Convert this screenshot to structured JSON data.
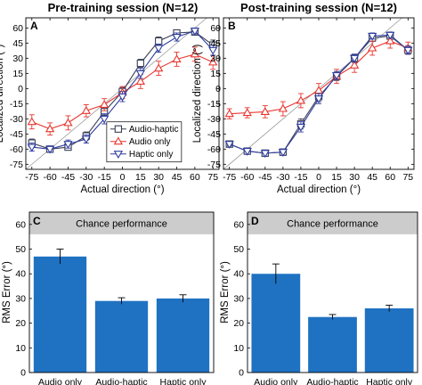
{
  "colors": {
    "audio_haptic": "#3a3f55",
    "audio_only": "#e8352e",
    "haptic_only": "#2f3d9e",
    "bar": "#1f72c2",
    "band": "#cccccc",
    "diagonal": "#9a9a9a"
  },
  "chart_data": [
    {
      "panel": "A",
      "type": "line",
      "title": "Pre-training session (N=12)",
      "xlabel": "Actual direction (°)",
      "ylabel": "Localized direction (°)",
      "xlim": [
        -80,
        80
      ],
      "ylim": [
        -80,
        70
      ],
      "x": [
        -75,
        -60,
        -45,
        -30,
        -15,
        0,
        15,
        30,
        45,
        60,
        75
      ],
      "x_tick_labels": [
        "-75",
        "-60",
        "-45",
        "-30",
        "-15",
        "0",
        "15",
        "30",
        "45",
        "60",
        "75"
      ],
      "y_tick_labels": [
        "-75",
        "-60",
        "-45",
        "-30",
        "-15",
        "0",
        "15",
        "30",
        "45",
        "60"
      ],
      "y_ticks": [
        -75,
        -60,
        -45,
        -30,
        -15,
        0,
        15,
        30,
        45,
        60
      ],
      "reference_line": "identity",
      "legend": {
        "placement": "bottom-right",
        "entries": [
          "Audio-haptic",
          "Audio only",
          "Haptic only"
        ]
      },
      "series": [
        {
          "name": "Audio-haptic",
          "marker": "square",
          "values": [
            -54,
            -60,
            -58,
            -47,
            -23,
            -3,
            25,
            47,
            55,
            56,
            43
          ],
          "errors": [
            4,
            3,
            3,
            4,
            4,
            4,
            4,
            4,
            3,
            3,
            5
          ]
        },
        {
          "name": "Audio only",
          "marker": "triangle-up",
          "values": [
            -33,
            -40,
            -34,
            -22,
            -16,
            -4,
            7,
            20,
            29,
            34,
            26
          ],
          "errors": [
            7,
            6,
            7,
            6,
            6,
            6,
            7,
            7,
            7,
            7,
            7
          ]
        },
        {
          "name": "Haptic only",
          "marker": "triangle-down",
          "values": [
            -58,
            -60,
            -55,
            -50,
            -30,
            -8,
            15,
            40,
            51,
            57,
            38
          ],
          "errors": [
            4,
            3,
            4,
            4,
            5,
            5,
            5,
            4,
            4,
            3,
            5
          ]
        }
      ]
    },
    {
      "panel": "B",
      "type": "line",
      "title": "Post-training session (N=12)",
      "xlabel": "Actual direction (°)",
      "ylabel": "Localized direction (°)",
      "xlim": [
        -80,
        80
      ],
      "ylim": [
        -80,
        70
      ],
      "x": [
        -75,
        -60,
        -45,
        -30,
        -15,
        0,
        15,
        30,
        45,
        60,
        75
      ],
      "x_tick_labels": [
        "-75",
        "-60",
        "-45",
        "-30",
        "-15",
        "0",
        "15",
        "30",
        "45",
        "60",
        "75"
      ],
      "y_tick_labels": [
        "-75",
        "-60",
        "-45",
        "-30",
        "-15",
        "0",
        "15",
        "30",
        "45",
        "60"
      ],
      "y_ticks": [
        -75,
        -60,
        -45,
        -30,
        -15,
        0,
        15,
        30,
        45,
        60
      ],
      "reference_line": "identity",
      "series": [
        {
          "name": "Audio-haptic",
          "marker": "square",
          "values": [
            -55,
            -62,
            -64,
            -63,
            -35,
            -8,
            12,
            30,
            50,
            52,
            38
          ],
          "errors": [
            2,
            3,
            3,
            3,
            5,
            5,
            4,
            4,
            3,
            3,
            4
          ]
        },
        {
          "name": "Audio only",
          "marker": "triangle-up",
          "values": [
            -25,
            -24,
            -23,
            -20,
            -12,
            -2,
            12,
            23,
            40,
            47,
            40
          ],
          "errors": [
            5,
            5,
            6,
            7,
            7,
            7,
            7,
            7,
            7,
            7,
            6
          ]
        },
        {
          "name": "Haptic only",
          "marker": "triangle-down",
          "values": [
            -55,
            -62,
            -64,
            -63,
            -38,
            -10,
            13,
            30,
            52,
            53,
            38
          ],
          "errors": [
            2,
            3,
            3,
            3,
            5,
            5,
            4,
            4,
            3,
            3,
            4
          ]
        }
      ]
    },
    {
      "panel": "C",
      "type": "bar",
      "categories": [
        "Audio only",
        "Audio-haptic",
        "Haptic only"
      ],
      "values": [
        47,
        29,
        30
      ],
      "errors": [
        3,
        1.3,
        1.5
      ],
      "ylabel": "RMS Error (°)",
      "ylim": [
        0,
        65
      ],
      "y_ticks": [
        0,
        10,
        20,
        30,
        40,
        50,
        60
      ],
      "y_tick_labels": [
        "0",
        "10",
        "20",
        "30",
        "40",
        "50",
        "60"
      ],
      "chance_band": {
        "label": "Chance performance",
        "from": 56,
        "to": 65
      }
    },
    {
      "panel": "D",
      "type": "bar",
      "categories": [
        "Audio only",
        "Audio-haptic",
        "Haptic only"
      ],
      "values": [
        40,
        22.5,
        26
      ],
      "errors": [
        4,
        1,
        1.3
      ],
      "ylabel": "RMS Error (°)",
      "ylim": [
        0,
        65
      ],
      "y_ticks": [
        0,
        10,
        20,
        30,
        40,
        50,
        60
      ],
      "y_tick_labels": [
        "0",
        "10",
        "20",
        "30",
        "40",
        "50",
        "60"
      ],
      "chance_band": {
        "label": "Chance performance",
        "from": 56,
        "to": 65
      }
    }
  ]
}
